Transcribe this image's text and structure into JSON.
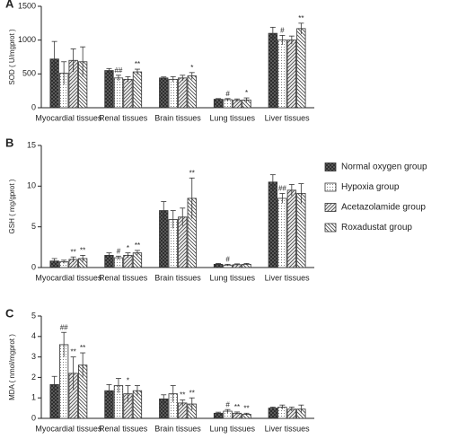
{
  "chart_data": [
    {
      "type": "bar",
      "panel": "A",
      "y_label": "SOD ( U/mgprot )",
      "categories": [
        "Myocardial tissues",
        "Renal tissues",
        "Brain tissues",
        "Lung tissues",
        "Liver tissues"
      ],
      "ylim": [
        0,
        1500
      ],
      "yticks": [
        0,
        500,
        1000,
        1500
      ],
      "series": [
        {
          "color": "#333333",
          "pattern": "crosshatch",
          "values": [
            720,
            550,
            440,
            125,
            1100
          ],
          "errors": [
            260,
            30,
            15,
            10,
            90
          ],
          "annotations": [
            null,
            null,
            null,
            null,
            null
          ]
        },
        {
          "color": "#333333",
          "pattern": "dots",
          "values": [
            510,
            440,
            420,
            120,
            1000
          ],
          "errors": [
            170,
            40,
            40,
            15,
            70
          ],
          "annotations": [
            null,
            "##",
            null,
            "#",
            "#"
          ]
        },
        {
          "color": "#333333",
          "pattern": "diagonal",
          "values": [
            700,
            420,
            440,
            110,
            1000
          ],
          "errors": [
            170,
            40,
            40,
            20,
            60
          ],
          "annotations": [
            null,
            null,
            null,
            null,
            null
          ]
        },
        {
          "color": "#333333",
          "pattern": "antidiagonal",
          "values": [
            680,
            530,
            470,
            115,
            1170
          ],
          "errors": [
            220,
            40,
            50,
            30,
            80
          ],
          "annotations": [
            null,
            "**",
            "*",
            "*",
            "**"
          ]
        }
      ]
    },
    {
      "type": "bar",
      "panel": "B",
      "y_label": "GSH ( mg/gprot )",
      "legend": "right",
      "categories": [
        "Myocardial tissues",
        "Renal tissues",
        "Brain tissues",
        "Lung tissues",
        "Liver tissues"
      ],
      "ylim": [
        0,
        15
      ],
      "yticks": [
        0,
        5,
        10,
        15
      ],
      "series": [
        {
          "name": "Normal oxygen group",
          "color": "#333333",
          "pattern": "crosshatch",
          "values": [
            0.8,
            1.5,
            7.0,
            0.4,
            10.5
          ],
          "errors": [
            0.3,
            0.3,
            1.1,
            0.1,
            0.9
          ],
          "annotations": [
            null,
            null,
            null,
            null,
            null
          ]
        },
        {
          "name": "Hypoxia group",
          "color": "#333333",
          "pattern": "dots",
          "values": [
            0.7,
            1.2,
            5.9,
            0.3,
            8.5
          ],
          "errors": [
            0.2,
            0.2,
            1.1,
            0.1,
            0.6
          ],
          "annotations": [
            null,
            "#",
            null,
            "#",
            "##"
          ]
        },
        {
          "name": "Acetazolamide group",
          "color": "#333333",
          "pattern": "diagonal",
          "values": [
            1.0,
            1.5,
            6.2,
            0.35,
            9.5
          ],
          "errors": [
            0.3,
            0.3,
            1.1,
            0.1,
            0.7
          ],
          "annotations": [
            "**",
            "*",
            null,
            null,
            null
          ]
        },
        {
          "name": "Roxadustat group",
          "color": "#333333",
          "pattern": "antidiagonal",
          "values": [
            1.1,
            1.8,
            8.5,
            0.4,
            9.1
          ],
          "errors": [
            0.4,
            0.3,
            2.5,
            0.1,
            1.2
          ],
          "annotations": [
            "**",
            "**",
            "**",
            null,
            null
          ]
        }
      ]
    },
    {
      "type": "bar",
      "panel": "C",
      "y_label": "MDA ( nmol/mgprot )",
      "categories": [
        "Myocardial tissues",
        "Renal tissues",
        "Brain tissues",
        "Lung tissues",
        "Liver tissues"
      ],
      "ylim": [
        0,
        5
      ],
      "yticks": [
        0,
        1,
        2,
        3,
        4,
        5
      ],
      "series": [
        {
          "color": "#333333",
          "pattern": "crosshatch",
          "values": [
            1.65,
            1.35,
            0.95,
            0.25,
            0.5
          ],
          "errors": [
            0.4,
            0.3,
            0.2,
            0.05,
            0.05
          ],
          "annotations": [
            null,
            null,
            null,
            null,
            null
          ]
        },
        {
          "color": "#333333",
          "pattern": "dots",
          "values": [
            3.6,
            1.6,
            1.2,
            0.35,
            0.55
          ],
          "errors": [
            0.6,
            0.35,
            0.4,
            0.08,
            0.1
          ],
          "annotations": [
            "##",
            null,
            null,
            "#",
            null
          ]
        },
        {
          "color": "#333333",
          "pattern": "diagonal",
          "values": [
            2.2,
            1.2,
            0.75,
            0.25,
            0.45
          ],
          "errors": [
            0.8,
            0.4,
            0.15,
            0.06,
            0.1
          ],
          "annotations": [
            "**",
            "*",
            "**",
            "**",
            null
          ]
        },
        {
          "color": "#333333",
          "pattern": "antidiagonal",
          "values": [
            2.6,
            1.35,
            0.7,
            0.2,
            0.45
          ],
          "errors": [
            0.6,
            0.25,
            0.3,
            0.05,
            0.2
          ],
          "annotations": [
            "**",
            null,
            "**",
            "**",
            null
          ]
        }
      ]
    }
  ]
}
